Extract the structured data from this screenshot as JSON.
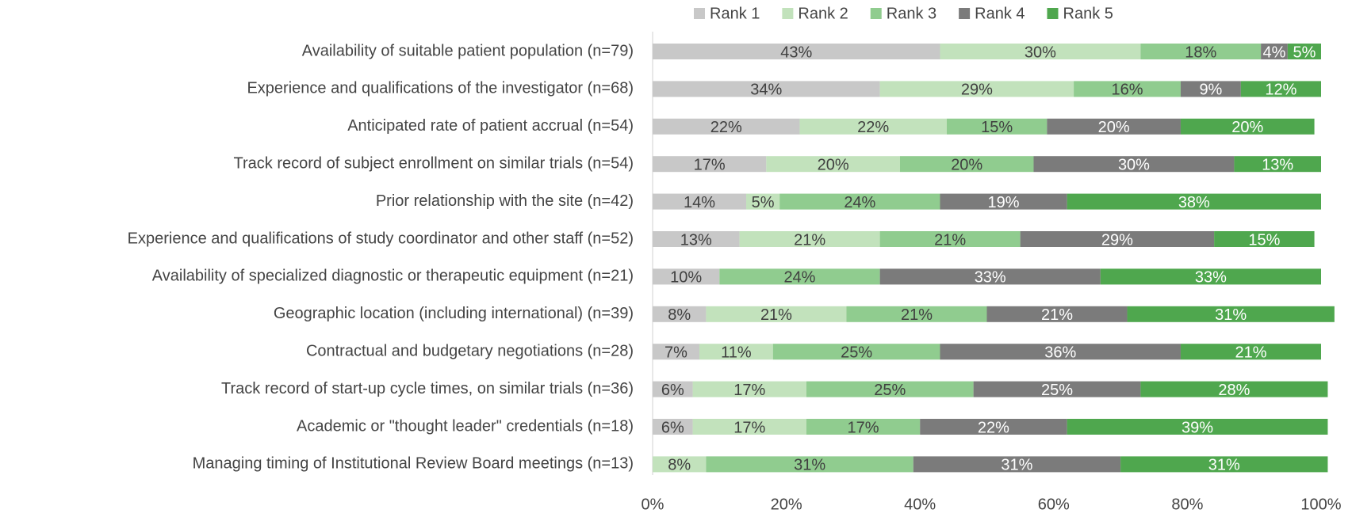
{
  "chart_data": {
    "type": "stacked_barh",
    "categories": [
      "Availability of suitable patient population (n=79)",
      "Experience and qualifications of the investigator (n=68)",
      "Anticipated rate of patient accrual (n=54)",
      "Track record of subject enrollment on similar trials (n=54)",
      "Prior relationship with the site (n=42)",
      "Experience and qualifications of study coordinator and other staff (n=52)",
      "Availability of specialized diagnostic or therapeutic equipment (n=21)",
      "Geographic location (including international) (n=39)",
      "Contractual and budgetary negotiations (n=28)",
      "Track record of start-up cycle times, on similar trials (n=36)",
      "Academic or \"thought leader\" credentials (n=18)",
      "Managing timing of Institutional Review Board meetings (n=13)"
    ],
    "series": [
      {
        "name": "Rank 1",
        "color": "#c8c8c8",
        "values": [
          43,
          34,
          22,
          17,
          14,
          13,
          10,
          8,
          7,
          6,
          6,
          null
        ],
        "value_labels": [
          "43%",
          "34%",
          "22%",
          "17%",
          "14%",
          "13%",
          "10%",
          "8%",
          "7%",
          "6%",
          "6%",
          null
        ]
      },
      {
        "name": "Rank 2",
        "color": "#c2e2bc",
        "values": [
          30,
          29,
          22,
          20,
          5,
          21,
          null,
          21,
          11,
          17,
          17,
          8
        ],
        "value_labels": [
          "30%",
          "29%",
          "22%",
          "20%",
          "5%",
          "21%",
          null,
          "21%",
          "11%",
          "17%",
          "17%",
          "8%"
        ]
      },
      {
        "name": "Rank 3",
        "color": "#90cc8f",
        "values": [
          18,
          16,
          15,
          20,
          24,
          21,
          24,
          21,
          25,
          25,
          17,
          31
        ],
        "value_labels": [
          "18%",
          "16%",
          "15%",
          "20%",
          "24%",
          "21%",
          "24%",
          "21%",
          "25%",
          "25%",
          "17%",
          "31%"
        ]
      },
      {
        "name": "Rank 4",
        "color": "#7b7b7b",
        "values": [
          4,
          9,
          20,
          30,
          19,
          29,
          33,
          21,
          36,
          25,
          22,
          31
        ],
        "value_labels": [
          "4%",
          "9%",
          "20%",
          "30%",
          "19%",
          "29%",
          "33%",
          "21%",
          "36%",
          "25%",
          "22%",
          "31%"
        ]
      },
      {
        "name": "Rank 5",
        "color": "#4fa74e",
        "values": [
          5,
          12,
          20,
          13,
          38,
          15,
          33,
          31,
          21,
          28,
          39,
          31
        ],
        "value_labels": [
          "5%",
          "12%",
          "20%",
          "13%",
          "38%",
          "15%",
          "33%",
          "31%",
          "21%",
          "28%",
          "39%",
          "31%"
        ]
      }
    ],
    "xlim": [
      0,
      100
    ],
    "xticks": [
      {
        "value": 0,
        "label": "0%"
      },
      {
        "value": 20,
        "label": "20%"
      },
      {
        "value": 40,
        "label": "40%"
      },
      {
        "value": 60,
        "label": "60%"
      },
      {
        "value": 80,
        "label": "80%"
      },
      {
        "value": 100,
        "label": "100%"
      }
    ],
    "legend": "top"
  }
}
